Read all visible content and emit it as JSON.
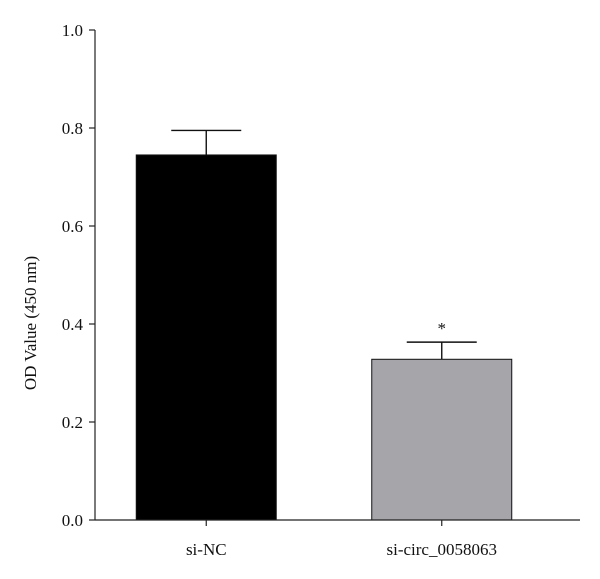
{
  "chart_data": {
    "type": "bar",
    "title": "",
    "xlabel": "",
    "ylabel": "OD Value (450 nm)",
    "ylim": [
      0,
      1.0
    ],
    "yticks": [
      "0.0",
      "0.2",
      "0.4",
      "0.6",
      "0.8",
      "1.0"
    ],
    "grid": false,
    "categories": [
      "si-NC",
      "si-circ_0058063"
    ],
    "values": [
      0.745,
      0.328
    ],
    "errors": [
      0.05,
      0.035
    ],
    "colors": [
      "#000000",
      "#a5a5aa"
    ],
    "annotations": [
      "",
      "*"
    ]
  }
}
